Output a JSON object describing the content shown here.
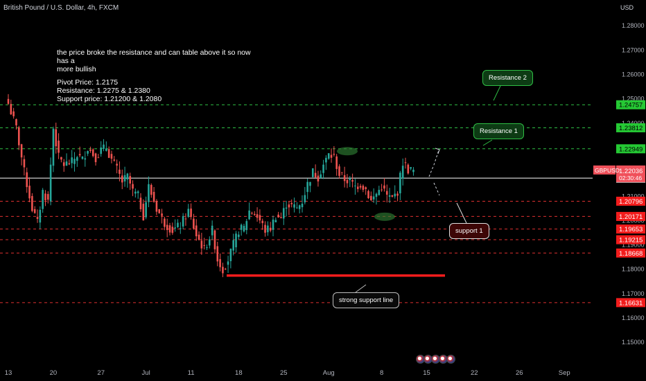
{
  "header": {
    "symbol_title": "British Pound / U.S. Dollar, 4h, FXCM",
    "currency": "USD"
  },
  "annotation": {
    "line1": "the price broke the resistance and can table above it so now has a",
    "line2": "more bullish",
    "pivot": "Pivot Price: 1.2175",
    "resistance": "Resistance: 1.2275 & 1.2380",
    "support": "Support price:  1.21200 & 1.2080"
  },
  "callouts": {
    "resistance2": "Resistance 2",
    "resistance1": "Resistance 1",
    "support1": "support 1",
    "strong_support": "strong support line"
  },
  "colors": {
    "background": "#000000",
    "green_line": "#2fbf45",
    "red_line": "#e03030",
    "up_candle": "#26a69a",
    "down_candle": "#ef5350",
    "pivot_line": "#ffffff",
    "price_tag": "#f0505a"
  },
  "chart_data": {
    "type": "candlestick",
    "symbol": "GBPUSD",
    "timeframe": "4h",
    "ylim": [
      1.1455,
      1.2832
    ],
    "y_ticks": [
      "1.28000",
      "1.27000",
      "1.26000",
      "1.25000",
      "1.24000",
      "1.23000",
      "1.22000",
      "1.21000",
      "1.20000",
      "1.19000",
      "1.18000",
      "1.17000",
      "1.16000",
      "1.15000"
    ],
    "x_ticks": [
      "13",
      "20",
      "27",
      "Jul",
      "11",
      "18",
      "25",
      "Aug",
      "8",
      "15",
      "22",
      "26",
      "Sep"
    ],
    "x_tick_index": [
      0,
      17,
      35,
      52,
      69,
      87,
      104,
      121,
      141,
      158,
      176,
      193,
      210
    ],
    "last_price": {
      "label": "GBPUSD",
      "value": "1.22036",
      "countdown": "02:30:46"
    },
    "pivot_level": {
      "value": "1.21745",
      "price": 1.21745
    },
    "levels": [
      {
        "value": "1.24757",
        "price": 1.24757,
        "kind": "resistance"
      },
      {
        "value": "1.23812",
        "price": 1.23812,
        "kind": "resistance"
      },
      {
        "value": "1.22949",
        "price": 1.22949,
        "kind": "resistance"
      },
      {
        "value": "1.20796",
        "price": 1.20796,
        "kind": "support"
      },
      {
        "value": "1.20171",
        "price": 1.20171,
        "kind": "support"
      },
      {
        "value": "1.19653",
        "price": 1.19653,
        "kind": "support"
      },
      {
        "value": "1.19215",
        "price": 1.19215,
        "kind": "support"
      },
      {
        "value": "1.18668",
        "price": 1.18668,
        "kind": "support"
      },
      {
        "value": "1.16631",
        "price": 1.16631,
        "kind": "support"
      }
    ],
    "strong_support_price": 1.1775,
    "close_anchors": [
      [
        0,
        1.248
      ],
      [
        3,
        1.238
      ],
      [
        6,
        1.22
      ],
      [
        9,
        1.205
      ],
      [
        11,
        1.199
      ],
      [
        13,
        1.212
      ],
      [
        15,
        1.208
      ],
      [
        17,
        1.238
      ],
      [
        19,
        1.226
      ],
      [
        21,
        1.223
      ],
      [
        24,
        1.224
      ],
      [
        26,
        1.227
      ],
      [
        28,
        1.225
      ],
      [
        30,
        1.23
      ],
      [
        33,
        1.226
      ],
      [
        35,
        1.229
      ],
      [
        37,
        1.23
      ],
      [
        39,
        1.225
      ],
      [
        41,
        1.221
      ],
      [
        43,
        1.216
      ],
      [
        45,
        1.218
      ],
      [
        47,
        1.212
      ],
      [
        49,
        1.21
      ],
      [
        51,
        1.202
      ],
      [
        53,
        1.214
      ],
      [
        56,
        1.205
      ],
      [
        59,
        1.199
      ],
      [
        62,
        1.196
      ],
      [
        65,
        1.198
      ],
      [
        68,
        1.204
      ],
      [
        71,
        1.194
      ],
      [
        74,
        1.188
      ],
      [
        77,
        1.196
      ],
      [
        79,
        1.184
      ],
      [
        81,
        1.18
      ],
      [
        83,
        1.184
      ],
      [
        85,
        1.19
      ],
      [
        87,
        1.196
      ],
      [
        89,
        1.197
      ],
      [
        91,
        1.204
      ],
      [
        93,
        1.203
      ],
      [
        95,
        1.2
      ],
      [
        97,
        1.196
      ],
      [
        99,
        1.197
      ],
      [
        101,
        1.202
      ],
      [
        103,
        1.201
      ],
      [
        105,
        1.207
      ],
      [
        107,
        1.206
      ],
      [
        109,
        1.205
      ],
      [
        111,
        1.208
      ],
      [
        113,
        1.215
      ],
      [
        115,
        1.22
      ],
      [
        117,
        1.218
      ],
      [
        119,
        1.223
      ],
      [
        121,
        1.227
      ],
      [
        123,
        1.226
      ],
      [
        125,
        1.219
      ],
      [
        127,
        1.217
      ],
      [
        129,
        1.216
      ],
      [
        131,
        1.214
      ],
      [
        133,
        1.215
      ],
      [
        135,
        1.213
      ],
      [
        137,
        1.208
      ],
      [
        139,
        1.211
      ],
      [
        141,
        1.214
      ],
      [
        143,
        1.21
      ],
      [
        145,
        1.209
      ],
      [
        147,
        1.212
      ],
      [
        149,
        1.224
      ],
      [
        151,
        1.221
      ],
      [
        153,
        1.2204
      ]
    ]
  }
}
